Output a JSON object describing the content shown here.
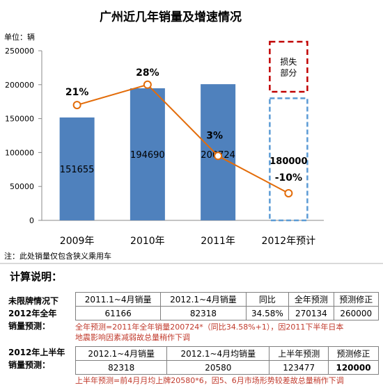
{
  "chart_data": {
    "type": "bar",
    "title": "广州近几年销量及增速情况",
    "ylabel": "单位：辆",
    "categories": [
      "2009年",
      "2010年",
      "2011年",
      "2012年预计"
    ],
    "ylim": [
      0,
      250000
    ],
    "yticks": [
      "0",
      "50000",
      "100000",
      "150000",
      "200000",
      "250000"
    ],
    "bars": [
      {
        "category": "2009年",
        "value": 151655,
        "label": "151655"
      },
      {
        "category": "2010年",
        "value": 194690,
        "label": "194690"
      },
      {
        "category": "2011年",
        "value": 200724,
        "label": "200724"
      },
      {
        "category": "2012年预计",
        "value": 180000,
        "label": "180000",
        "forecast": true
      }
    ],
    "growth_line": {
      "values": [
        170000,
        200000,
        95000,
        40000
      ],
      "labels": [
        "21%",
        "28%",
        "3%",
        "-10%"
      ]
    },
    "loss_box_label": [
      "损失",
      "部分"
    ],
    "colors": {
      "bar": "#4f81bd",
      "line": "#e36c09",
      "forecast": "#5b9bd5",
      "loss": "#c00000"
    }
  },
  "note": "注：此处销量仅包含狭义乘用车",
  "calc_title": "计算说明：",
  "section1": {
    "label_lines": [
      "未限牌情况下",
      "2012年全年",
      "销量预测："
    ],
    "headers": [
      "2011.1~4月销量",
      "2012.1~4月销量",
      "同比",
      "全年预测",
      "预测修正"
    ],
    "values": [
      "61166",
      "82318",
      "34.58%",
      "270134",
      "260000"
    ],
    "note_lines": [
      "全年预测=2011年全年销量200724*（同比34.58%+1），因2011下半年日本",
      "地震影响因素减弱故总量稍作下调"
    ]
  },
  "section2": {
    "label_lines": [
      "2012年上半年",
      "销量预测："
    ],
    "headers": [
      "2012.1~4月销量",
      "2012.1~4月均销量",
      "上半年预测",
      "预测修正"
    ],
    "values": [
      "82318",
      "20580",
      "123477",
      "120000"
    ],
    "note": "上半年预测=前4月月均上牌20580*6，因5、6月市场形势较差故总量稍作下调"
  }
}
